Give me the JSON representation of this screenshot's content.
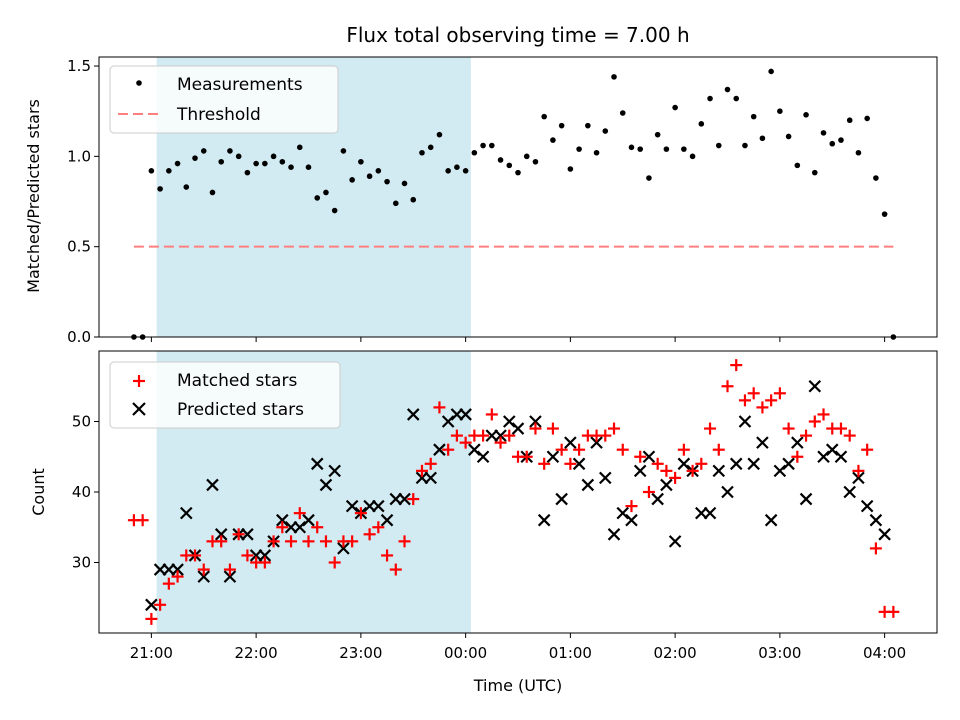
{
  "chart_data": [
    {
      "type": "scatter",
      "title": "Flux total observing time = 7.00 h",
      "xlabel": "",
      "ylabel": "Matched/Predicted stars",
      "ylim": [
        0,
        1.55
      ],
      "y_ticks": [
        "0.0",
        "0.5",
        "1.0",
        "1.5"
      ],
      "y_tick_values": [
        0,
        0.5,
        1.0,
        1.5
      ],
      "shaded_span_hours": [
        21.05,
        24.05
      ],
      "shaded_color": "#add8e6",
      "grid": false,
      "legend_position": "top-left",
      "legend": [
        "Measurements",
        "Threshold"
      ],
      "series": [
        {
          "name": "Measurements",
          "color": "#000000",
          "marker": "dot",
          "x": [
            "20:50",
            "20:55",
            "21:00",
            "21:05",
            "21:10",
            "21:15",
            "21:20",
            "21:25",
            "21:30",
            "21:35",
            "21:40",
            "21:45",
            "21:50",
            "21:55",
            "22:00",
            "22:05",
            "22:10",
            "22:15",
            "22:20",
            "22:25",
            "22:30",
            "22:35",
            "22:40",
            "22:45",
            "22:50",
            "22:55",
            "23:00",
            "23:05",
            "23:10",
            "23:15",
            "23:20",
            "23:25",
            "23:30",
            "23:35",
            "23:40",
            "23:45",
            "23:50",
            "23:55",
            "00:00",
            "00:05",
            "00:10",
            "00:15",
            "00:20",
            "00:25",
            "00:30",
            "00:35",
            "00:40",
            "00:45",
            "00:50",
            "00:55",
            "01:00",
            "01:05",
            "01:10",
            "01:15",
            "01:20",
            "01:25",
            "01:30",
            "01:35",
            "01:40",
            "01:45",
            "01:50",
            "01:55",
            "02:00",
            "02:05",
            "02:10",
            "02:15",
            "02:20",
            "02:25",
            "02:30",
            "02:35",
            "02:40",
            "02:45",
            "02:50",
            "02:55",
            "03:00",
            "03:05",
            "03:10",
            "03:15",
            "03:20",
            "03:25",
            "03:30",
            "03:35",
            "03:40",
            "03:45",
            "03:50",
            "03:55",
            "04:00",
            "04:05"
          ],
          "y": [
            0.0,
            0.0,
            0.92,
            0.82,
            0.92,
            0.96,
            0.83,
            0.99,
            1.03,
            0.8,
            0.97,
            1.03,
            1.0,
            0.91,
            0.96,
            0.96,
            1.0,
            0.97,
            0.94,
            1.05,
            0.94,
            0.77,
            0.8,
            0.7,
            1.03,
            0.87,
            0.97,
            0.89,
            0.92,
            0.86,
            0.74,
            0.85,
            0.76,
            1.02,
            1.05,
            1.12,
            0.92,
            0.94,
            0.92,
            1.02,
            1.06,
            1.06,
            0.98,
            0.95,
            0.91,
            1.0,
            0.97,
            1.22,
            1.09,
            1.17,
            0.93,
            1.04,
            1.17,
            1.02,
            1.14,
            1.44,
            1.24,
            1.05,
            1.04,
            0.88,
            1.12,
            1.04,
            1.27,
            1.04,
            1.0,
            1.18,
            1.32,
            1.06,
            1.37,
            1.32,
            1.06,
            1.22,
            1.1,
            1.47,
            1.25,
            1.11,
            0.95,
            1.23,
            0.91,
            1.13,
            1.07,
            1.09,
            1.2,
            1.02,
            1.21,
            0.88,
            0.68,
            0.0
          ]
        },
        {
          "name": "Threshold",
          "color": "#ff7f7f",
          "style": "dashed",
          "x": [
            "20:50",
            "04:05"
          ],
          "y": [
            0.5,
            0.5
          ]
        }
      ]
    },
    {
      "type": "scatter",
      "title": "",
      "xlabel": "Time (UTC)",
      "ylabel": "Count",
      "ylim": [
        20,
        60
      ],
      "y_ticks": [
        "30",
        "40",
        "50"
      ],
      "y_tick_values": [
        30,
        40,
        50
      ],
      "x_ticks": [
        "21:00",
        "22:00",
        "23:00",
        "00:00",
        "01:00",
        "02:00",
        "03:00",
        "04:00"
      ],
      "x_tick_hours": [
        21,
        22,
        23,
        24,
        25,
        26,
        27,
        28
      ],
      "xlim_hours": [
        20.5,
        28.5
      ],
      "shaded_span_hours": [
        21.05,
        24.05
      ],
      "shaded_color": "#add8e6",
      "grid": false,
      "legend_position": "top-left",
      "legend": [
        "Matched stars",
        "Predicted stars"
      ],
      "series": [
        {
          "name": "Matched stars",
          "color": "#ff0000",
          "marker": "plus",
          "x": [
            "20:50",
            "20:55",
            "21:00",
            "21:05",
            "21:10",
            "21:15",
            "21:20",
            "21:25",
            "21:30",
            "21:35",
            "21:40",
            "21:45",
            "21:50",
            "21:55",
            "22:00",
            "22:05",
            "22:10",
            "22:15",
            "22:20",
            "22:25",
            "22:30",
            "22:35",
            "22:40",
            "22:45",
            "22:50",
            "22:55",
            "23:00",
            "23:05",
            "23:10",
            "23:15",
            "23:20",
            "23:25",
            "23:30",
            "23:35",
            "23:40",
            "23:45",
            "23:50",
            "23:55",
            "00:00",
            "00:05",
            "00:10",
            "00:15",
            "00:20",
            "00:25",
            "00:30",
            "00:35",
            "00:40",
            "00:45",
            "00:50",
            "00:55",
            "01:00",
            "01:05",
            "01:10",
            "01:15",
            "01:20",
            "01:25",
            "01:30",
            "01:35",
            "01:40",
            "01:45",
            "01:50",
            "01:55",
            "02:00",
            "02:05",
            "02:10",
            "02:15",
            "02:20",
            "02:25",
            "02:30",
            "02:35",
            "02:40",
            "02:45",
            "02:50",
            "02:55",
            "03:00",
            "03:05",
            "03:10",
            "03:15",
            "03:20",
            "03:25",
            "03:30",
            "03:35",
            "03:40",
            "03:45",
            "03:50",
            "03:55",
            "04:00",
            "04:05"
          ],
          "y": [
            36,
            36,
            22,
            24,
            27,
            28,
            31,
            31,
            29,
            33,
            33,
            29,
            34,
            31,
            30,
            30,
            33,
            35,
            33,
            37,
            33,
            35,
            33,
            30,
            33,
            33,
            37,
            34,
            35,
            31,
            29,
            33,
            39,
            43,
            44,
            52,
            46,
            48,
            47,
            48,
            48,
            51,
            47,
            48,
            45,
            45,
            49,
            44,
            49,
            46,
            44,
            46,
            48,
            48,
            48,
            49,
            46,
            38,
            45,
            40,
            44,
            43,
            42,
            46,
            43,
            44,
            49,
            46,
            55,
            58,
            53,
            54,
            52,
            53,
            54,
            49,
            45,
            48,
            50,
            51,
            49,
            49,
            48,
            43,
            46,
            32,
            23,
            23
          ]
        },
        {
          "name": "Predicted stars",
          "color": "#000000",
          "marker": "x",
          "x": [
            "21:00",
            "21:05",
            "21:10",
            "21:15",
            "21:20",
            "21:25",
            "21:30",
            "21:35",
            "21:40",
            "21:45",
            "21:50",
            "21:55",
            "22:00",
            "22:05",
            "22:10",
            "22:15",
            "22:20",
            "22:25",
            "22:30",
            "22:35",
            "22:40",
            "22:45",
            "22:50",
            "22:55",
            "23:00",
            "23:05",
            "23:10",
            "23:15",
            "23:20",
            "23:25",
            "23:30",
            "23:35",
            "23:40",
            "23:45",
            "23:50",
            "23:55",
            "00:00",
            "00:05",
            "00:10",
            "00:15",
            "00:20",
            "00:25",
            "00:30",
            "00:35",
            "00:40",
            "00:45",
            "00:50",
            "00:55",
            "01:00",
            "01:05",
            "01:10",
            "01:15",
            "01:20",
            "01:25",
            "01:30",
            "01:35",
            "01:40",
            "01:45",
            "01:50",
            "01:55",
            "02:00",
            "02:05",
            "02:10",
            "02:15",
            "02:20",
            "02:25",
            "02:30",
            "02:35",
            "02:40",
            "02:45",
            "02:50",
            "02:55",
            "03:00",
            "03:05",
            "03:10",
            "03:15",
            "03:20",
            "03:25",
            "03:30",
            "03:35",
            "03:40",
            "03:45",
            "03:50",
            "03:55",
            "04:00"
          ],
          "y": [
            24,
            29,
            29,
            29,
            37,
            31,
            28,
            41,
            34,
            28,
            34,
            34,
            31,
            31,
            33,
            36,
            35,
            35,
            36,
            44,
            41,
            43,
            32,
            38,
            37,
            38,
            38,
            36,
            39,
            39,
            51,
            42,
            42,
            46,
            50,
            51,
            51,
            46,
            45,
            48,
            48,
            50,
            49,
            45,
            50,
            36,
            45,
            39,
            47,
            44,
            41,
            47,
            42,
            34,
            37,
            36,
            43,
            45,
            39,
            41,
            33,
            44,
            43,
            37,
            37,
            43,
            40,
            44,
            50,
            44,
            47,
            36,
            43,
            44,
            47,
            39,
            55,
            45,
            46,
            45,
            40,
            42,
            38,
            36,
            34
          ]
        }
      ]
    }
  ]
}
